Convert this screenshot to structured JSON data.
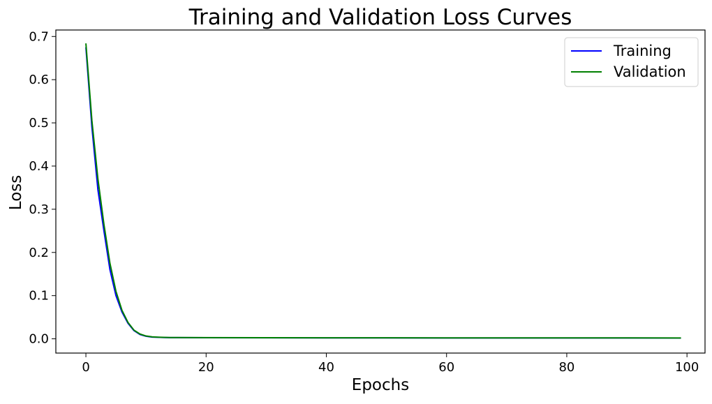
{
  "chart_data": {
    "type": "line",
    "title": "Training and Validation Loss Curves",
    "xlabel": "Epochs",
    "ylabel": "Loss",
    "xlim": [
      -5,
      103
    ],
    "ylim": [
      -0.033,
      0.715
    ],
    "xticks": [
      0,
      20,
      40,
      60,
      80,
      100
    ],
    "xtick_labels": [
      "0",
      "20",
      "40",
      "60",
      "80",
      "100"
    ],
    "yticks": [
      0.0,
      0.1,
      0.2,
      0.3,
      0.4,
      0.5,
      0.6,
      0.7
    ],
    "ytick_labels": [
      "0.0",
      "0.1",
      "0.2",
      "0.3",
      "0.4",
      "0.5",
      "0.6",
      "0.7"
    ],
    "grid": false,
    "legend_position": "top-right",
    "x": [
      0,
      1,
      2,
      3,
      4,
      5,
      6,
      7,
      8,
      9,
      10,
      11,
      12,
      13,
      14,
      15,
      20,
      30,
      40,
      50,
      60,
      70,
      80,
      90,
      99
    ],
    "series": [
      {
        "name": "Training",
        "color": "#0000ff",
        "values": [
          0.675,
          0.49,
          0.345,
          0.25,
          0.16,
          0.1,
          0.062,
          0.036,
          0.019,
          0.01,
          0.006,
          0.004,
          0.0035,
          0.003,
          0.0028,
          0.0027,
          0.0025,
          0.0023,
          0.0022,
          0.0021,
          0.002,
          0.002,
          0.0019,
          0.0019,
          0.0018
        ]
      },
      {
        "name": "Validation",
        "color": "#008000",
        "values": [
          0.684,
          0.505,
          0.37,
          0.265,
          0.175,
          0.11,
          0.066,
          0.038,
          0.02,
          0.011,
          0.0065,
          0.0045,
          0.0038,
          0.0033,
          0.003,
          0.0029,
          0.0027,
          0.0025,
          0.0024,
          0.0023,
          0.0022,
          0.0022,
          0.0021,
          0.0021,
          0.002
        ]
      }
    ]
  }
}
